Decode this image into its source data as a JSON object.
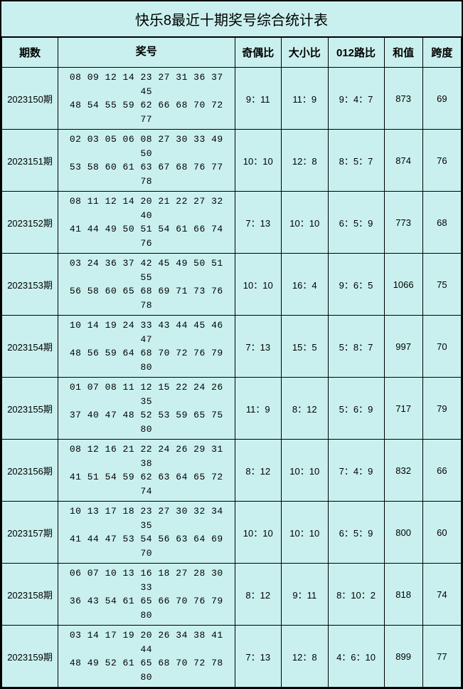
{
  "title": "快乐8最近十期奖号综合统计表",
  "background_color": "#c9f0ee",
  "border_color": "#000000",
  "title_fontsize": 20,
  "header_fontsize": 15,
  "cell_fontsize": 13,
  "columns": {
    "period": "期数",
    "numbers": "奖号",
    "odd_even": "奇偶比",
    "big_small": "大小比",
    "route012": "012路比",
    "sum": "和值",
    "span": "跨度"
  },
  "rows": [
    {
      "period": "2023150期",
      "line1": "08 09 12 14 23 27 31 36 37 45",
      "line2": "48 54 55 59 62 66 68 70 72 77",
      "odd_even": "9：11",
      "big_small": "11：9",
      "route012": "9：4：7",
      "sum": "873",
      "span": "69"
    },
    {
      "period": "2023151期",
      "line1": "02 03 05 06 08 27 30 33 49 50",
      "line2": "53 58 60 61 63 67 68 76 77 78",
      "odd_even": "10：10",
      "big_small": "12：8",
      "route012": "8：5：7",
      "sum": "874",
      "span": "76"
    },
    {
      "period": "2023152期",
      "line1": "08 11 12 14 20 21 22 27 32 40",
      "line2": "41 44 49 50 51 54 61 66 74 76",
      "odd_even": "7：13",
      "big_small": "10：10",
      "route012": "6：5：9",
      "sum": "773",
      "span": "68"
    },
    {
      "period": "2023153期",
      "line1": "03 24 36 37 42 45 49 50 51 55",
      "line2": "56 58 60 65 68 69 71 73 76 78",
      "odd_even": "10：10",
      "big_small": "16：4",
      "route012": "9：6：5",
      "sum": "1066",
      "span": "75"
    },
    {
      "period": "2023154期",
      "line1": "10 14 19 24 33 43 44 45 46 47",
      "line2": "48 56 59 64 68 70 72 76 79 80",
      "odd_even": "7：13",
      "big_small": "15：5",
      "route012": "5：8：7",
      "sum": "997",
      "span": "70"
    },
    {
      "period": "2023155期",
      "line1": "01 07 08 11 12 15 22 24 26 35",
      "line2": "37 40 47 48 52 53 59 65 75 80",
      "odd_even": "11：9",
      "big_small": "8：12",
      "route012": "5：6：9",
      "sum": "717",
      "span": "79"
    },
    {
      "period": "2023156期",
      "line1": "08 12 16 21 22 24 26 29 31 38",
      "line2": "41 51 54 59 62 63 64 65 72 74",
      "odd_even": "8：12",
      "big_small": "10：10",
      "route012": "7：4：9",
      "sum": "832",
      "span": "66"
    },
    {
      "period": "2023157期",
      "line1": "10 13 17 18 23 27 30 32 34 35",
      "line2": "41 44 47 53 54 56 63 64 69 70",
      "odd_even": "10：10",
      "big_small": "10：10",
      "route012": "6：5：9",
      "sum": "800",
      "span": "60"
    },
    {
      "period": "2023158期",
      "line1": "06 07 10 13 16 18 27 28 30 33",
      "line2": "36 43 54 61 65 66 70 76 79 80",
      "odd_even": "8：12",
      "big_small": "9：11",
      "route012": "8：10：2",
      "sum": "818",
      "span": "74"
    },
    {
      "period": "2023159期",
      "line1": "03 14 17 19 20 26 34 38 41 44",
      "line2": "48 49 52 61 65 68 70 72 78 80",
      "odd_even": "7：13",
      "big_small": "12：8",
      "route012": "4：6：10",
      "sum": "899",
      "span": "77"
    }
  ]
}
